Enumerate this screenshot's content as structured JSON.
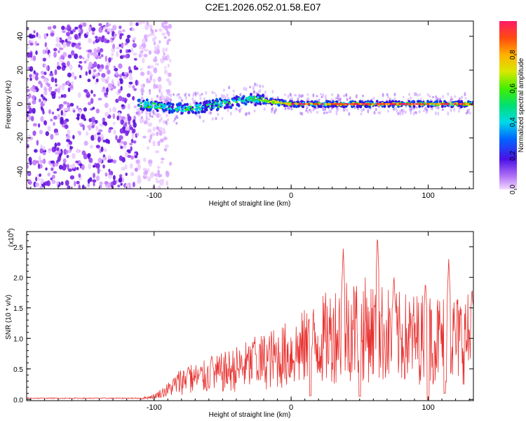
{
  "title": "C2E1.2026.052.01.58.E07",
  "chart_data": [
    {
      "type": "heatmap",
      "name": "spectrogram",
      "xlabel": "Height of straight line (km)",
      "ylabel": "Frequency (Hz)",
      "xlim": [
        -193,
        133
      ],
      "ylim": [
        -50,
        49
      ],
      "xticks": [
        -100,
        0,
        100
      ],
      "xtick_labels": [
        "-100",
        "0",
        "100"
      ],
      "yticks": [
        -40,
        -20,
        0,
        20,
        40
      ],
      "ytick_labels": [
        "-40",
        "-20",
        "0",
        "20",
        "40"
      ],
      "noise_region_x": [
        -193,
        -100
      ],
      "signal_center_freq": [
        {
          "x": -110,
          "y": 0
        },
        {
          "x": -90,
          "y": -2
        },
        {
          "x": -75,
          "y": -3
        },
        {
          "x": -60,
          "y": -1
        },
        {
          "x": -45,
          "y": 1
        },
        {
          "x": -30,
          "y": 3
        },
        {
          "x": -20,
          "y": 2
        },
        {
          "x": -10,
          "y": 1
        },
        {
          "x": 0,
          "y": 0
        },
        {
          "x": 133,
          "y": 0
        }
      ],
      "colorbar": {
        "label": "Normalized spectral amplitude",
        "range": [
          0,
          1
        ],
        "ticks": [
          "0.0",
          "0.2",
          "0.4",
          "0.6",
          "0.8"
        ]
      }
    },
    {
      "type": "line",
      "name": "snr",
      "color": "#e8312f",
      "xlabel": "Height of straight line (km)",
      "ylabel": "SNR (10 * v/v)",
      "scale_label": "(x10",
      "scale_exp": "4",
      "scale_close": ")",
      "xlim": [
        -193,
        133
      ],
      "ylim": [
        -0.02,
        2.75
      ],
      "xticks": [
        -100,
        0,
        100
      ],
      "xtick_labels": [
        "-100",
        "0",
        "100"
      ],
      "yticks": [
        0,
        0.5,
        1.0,
        1.5,
        2.0,
        2.5
      ],
      "ytick_labels": [
        "0.0",
        "0.5",
        "1.0",
        "1.5",
        "2.0",
        "2.5"
      ],
      "envelope": [
        {
          "x": -193,
          "v": 0.02
        },
        {
          "x": -110,
          "v": 0.02
        },
        {
          "x": -100,
          "v": 0.08
        },
        {
          "x": -90,
          "v": 0.25
        },
        {
          "x": -80,
          "v": 0.5
        },
        {
          "x": -60,
          "v": 0.6
        },
        {
          "x": -40,
          "v": 0.8
        },
        {
          "x": -20,
          "v": 1.0
        },
        {
          "x": 0,
          "v": 1.2
        },
        {
          "x": 20,
          "v": 1.5
        },
        {
          "x": 40,
          "v": 1.9
        },
        {
          "x": 60,
          "v": 1.8
        },
        {
          "x": 80,
          "v": 1.6
        },
        {
          "x": 100,
          "v": 1.6
        },
        {
          "x": 133,
          "v": 1.6
        }
      ],
      "peaks": [
        {
          "x": -75,
          "v": 0.54
        },
        {
          "x": -58,
          "v": 0.73
        },
        {
          "x": -27,
          "v": 0.97
        },
        {
          "x": 13,
          "v": 1.37
        },
        {
          "x": 38,
          "v": 2.47
        },
        {
          "x": 63,
          "v": 2.72
        },
        {
          "x": 75,
          "v": 2.05
        },
        {
          "x": 98,
          "v": 1.95
        },
        {
          "x": 115,
          "v": 2.3
        },
        {
          "x": 132,
          "v": 1.85
        }
      ],
      "dips": [
        {
          "x": 14,
          "v": 0.06
        },
        {
          "x": 50,
          "v": 0.05
        },
        {
          "x": 100,
          "v": 0.0
        },
        {
          "x": 112,
          "v": 0.1
        }
      ]
    }
  ]
}
